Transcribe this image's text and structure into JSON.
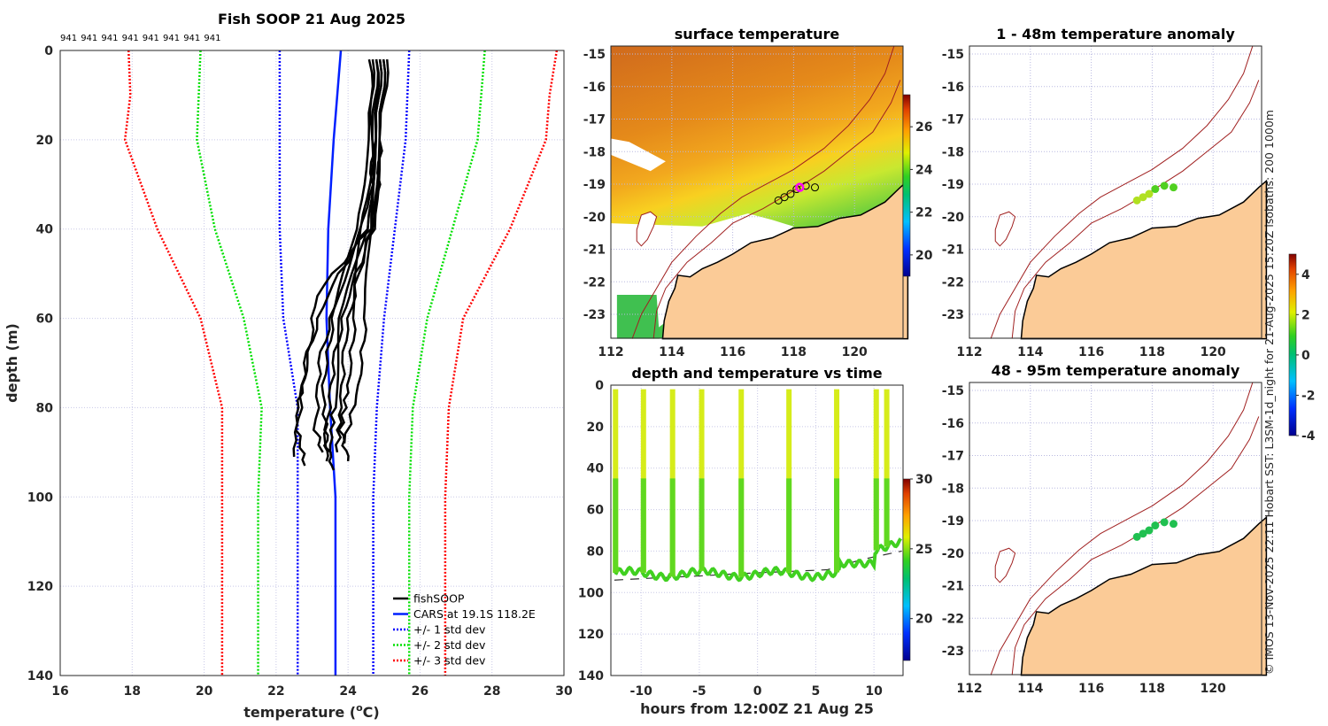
{
  "chart_data": [
    {
      "type": "line",
      "title": "Fish SOOP 21 Aug 2025",
      "xlabel": "temperature (oC)",
      "xlabel_main": "temperature (",
      "xlabel_sup": "o",
      "xlabel_end": "C)",
      "ylabel": "depth (m)",
      "xlim": [
        16,
        30
      ],
      "ylim": [
        140,
        0
      ],
      "xticks": [
        16,
        18,
        20,
        22,
        24,
        26,
        28,
        30
      ],
      "yticks": [
        0,
        20,
        40,
        60,
        80,
        100,
        120,
        140
      ],
      "top_labels": [
        "941",
        "941",
        "941",
        "941",
        "941",
        "941",
        "941",
        "941"
      ],
      "legend": [
        "fishSOOP",
        "CARS at 19.1S 118.2E",
        "+/- 1 std dev",
        "+/- 2 std dev",
        "+/- 3 std dev"
      ],
      "depths": [
        0,
        10,
        20,
        40,
        60,
        80,
        100,
        140
      ],
      "cars_mean": [
        23.8,
        23.7,
        23.6,
        23.45,
        23.4,
        23.5,
        23.65,
        23.65
      ],
      "std1_low": [
        22.1,
        22.1,
        22.1,
        22.1,
        22.2,
        22.6,
        22.6,
        22.6
      ],
      "std1_high": [
        25.7,
        25.65,
        25.6,
        25.3,
        25.0,
        24.8,
        24.7,
        24.7
      ],
      "std2_low": [
        19.9,
        19.85,
        19.8,
        20.3,
        21.1,
        21.6,
        21.5,
        21.5
      ],
      "std2_high": [
        27.8,
        27.7,
        27.6,
        26.9,
        26.2,
        25.8,
        25.7,
        25.7
      ],
      "std3_low": [
        17.9,
        17.95,
        17.8,
        18.7,
        19.9,
        20.5,
        20.5,
        20.5
      ],
      "std3_high": [
        29.8,
        29.6,
        29.5,
        28.5,
        27.2,
        26.8,
        26.7,
        26.7
      ],
      "profiles": [
        {
          "depth": [
            2,
            20,
            40,
            55,
            70,
            85,
            93
          ],
          "temp": [
            24.9,
            24.8,
            24.5,
            23.4,
            22.8,
            22.6,
            22.8
          ]
        },
        {
          "depth": [
            2,
            20,
            40,
            55,
            70,
            85,
            92
          ],
          "temp": [
            25.0,
            24.9,
            24.7,
            24.0,
            23.6,
            23.4,
            23.4
          ]
        },
        {
          "depth": [
            2,
            20,
            40,
            60,
            75,
            88,
            94
          ],
          "temp": [
            24.7,
            24.6,
            24.2,
            23.6,
            23.3,
            23.4,
            23.6
          ]
        },
        {
          "depth": [
            2,
            20,
            35,
            50,
            65,
            80,
            90
          ],
          "temp": [
            25.1,
            24.9,
            24.8,
            24.3,
            23.9,
            23.8,
            23.7
          ]
        },
        {
          "depth": [
            2,
            20,
            40,
            55,
            70,
            80,
            91
          ],
          "temp": [
            24.6,
            24.7,
            24.6,
            23.1,
            22.9,
            22.6,
            22.5
          ]
        },
        {
          "depth": [
            2,
            20,
            40,
            60,
            75,
            85,
            92
          ],
          "temp": [
            24.8,
            24.8,
            24.3,
            24.2,
            24.0,
            23.8,
            24.0
          ]
        },
        {
          "depth": [
            2,
            20,
            40,
            60,
            80,
            90
          ],
          "temp": [
            24.9,
            24.8,
            24.5,
            23.8,
            23.6,
            23.5
          ]
        },
        {
          "depth": [
            2,
            20,
            40,
            60,
            75,
            88
          ],
          "temp": [
            25.0,
            24.9,
            24.6,
            24.5,
            24.3,
            23.9
          ]
        },
        {
          "depth": [
            2,
            20,
            35,
            55,
            70,
            85,
            90
          ],
          "temp": [
            24.8,
            24.7,
            24.6,
            23.7,
            23.2,
            23.1,
            23.3
          ]
        }
      ]
    },
    {
      "type": "heatmap",
      "title": "surface temperature",
      "xticks": [
        112,
        114,
        116,
        118,
        120
      ],
      "yticks": [
        -15,
        -16,
        -17,
        -18,
        -19,
        -20,
        -21,
        -22,
        -23
      ],
      "colorbar_ticks": [
        20,
        22,
        24,
        26
      ],
      "clim": [
        19,
        27.5
      ]
    },
    {
      "type": "scatter",
      "title": "1 - 48m temperature anomaly",
      "xticks": [
        112,
        114,
        116,
        118,
        120
      ],
      "yticks": [
        -15,
        -16,
        -17,
        -18,
        -19,
        -20,
        -21,
        -22,
        -23
      ]
    },
    {
      "type": "scatter",
      "title": "48 - 95m temperature anomaly",
      "xticks": [
        112,
        114,
        116,
        118,
        120
      ],
      "yticks": [
        -15,
        -16,
        -17,
        -18,
        -19,
        -20,
        -21,
        -22,
        -23
      ],
      "colorbar_ticks": [
        4,
        2,
        0,
        -2,
        -4
      ],
      "clim": [
        -4,
        5
      ]
    },
    {
      "type": "line",
      "title": "depth and temperature vs time",
      "xlabel": "hours from 12:00Z 21 Aug 25",
      "xticks": [
        -10,
        -5,
        0,
        5,
        10
      ],
      "yticks": [
        0,
        20,
        40,
        60,
        80,
        100,
        120,
        140
      ],
      "xlim": [
        -12.6,
        12.5
      ],
      "ylim": [
        140,
        0
      ],
      "colorbar_ticks": [
        30,
        25,
        20
      ],
      "clim": [
        17,
        30
      ],
      "dive_hours": [
        -12.2,
        -9.8,
        -7.3,
        -4.8,
        -1.4,
        2.7,
        6.8,
        10.2,
        11.1
      ]
    }
  ],
  "track": {
    "lon": [
      117.5,
      117.7,
      117.9,
      118.1,
      118.4,
      118.7
    ],
    "lat": [
      -19.5,
      -19.4,
      -19.3,
      -19.15,
      -19.05,
      -19.1
    ],
    "anom_shallow": [
      1.7,
      1.6,
      1.3,
      1.0,
      0.8,
      0.8
    ],
    "anom_deep": [
      0.4,
      0.4,
      0.3,
      0.3,
      0.3,
      0.3
    ]
  },
  "footer": "© IMOS 13-Nov-2025 22:11 Hobart SST: L3SM-1d_night for 21-Aug-2025 15:20Z isobaths: 200  1000m"
}
